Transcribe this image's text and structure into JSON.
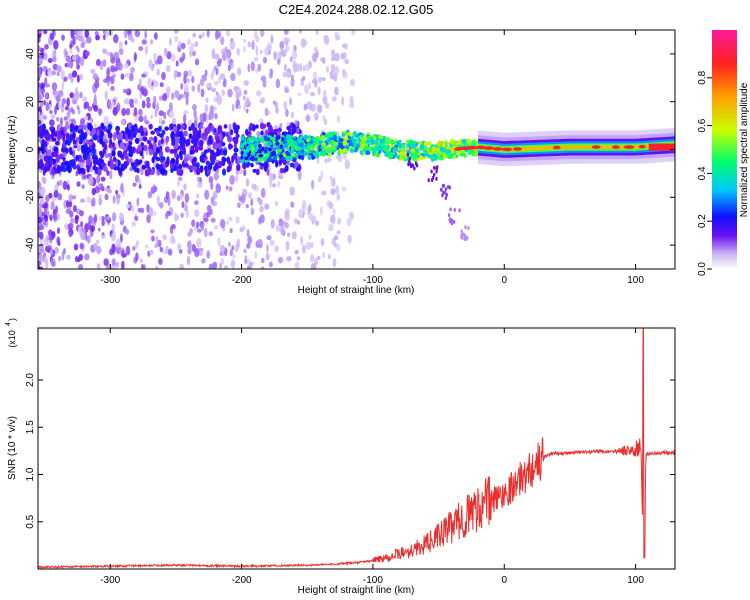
{
  "title": "C2E4.2024.288.02.12.G05",
  "chart_data": [
    {
      "type": "heatmap",
      "xlabel": "Height of straight line (km)",
      "ylabel": "Frequency (Hz)",
      "xlim": [
        -355,
        130
      ],
      "ylim": [
        -50,
        50
      ],
      "xticks": [
        -300,
        -200,
        -100,
        0,
        100
      ],
      "yticks": [
        -40,
        -20,
        0,
        20,
        40
      ],
      "colorbar": {
        "label": "Normalized spectral amplitude",
        "range": [
          0,
          1
        ],
        "ticks": [
          0.0,
          0.2,
          0.4,
          0.6,
          0.8
        ],
        "tick_labels": [
          "0.0",
          "0.2",
          "0.4",
          "0.6",
          "0.8"
        ],
        "colormap": [
          "#ffffff",
          "#cfb8f5",
          "#6a12f2",
          "#1010ff",
          "#00c8ff",
          "#00ff6a",
          "#c8ff00",
          "#ffa000",
          "#ff2020",
          "#ff1a9a"
        ]
      },
      "signal_track": {
        "description_points": [
          [
            -355,
            0
          ],
          [
            -200,
            0
          ],
          [
            -150,
            1
          ],
          [
            -120,
            3
          ],
          [
            -100,
            2
          ],
          [
            -80,
            0
          ],
          [
            -60,
            -1
          ],
          [
            -40,
            0
          ],
          [
            -20,
            1
          ],
          [
            0,
            0
          ],
          [
            50,
            1
          ],
          [
            100,
            1
          ],
          [
            130,
            2
          ]
        ]
      },
      "descending_branch": [
        [
          -70,
          -5
        ],
        [
          -55,
          -10
        ],
        [
          -45,
          -18
        ],
        [
          -38,
          -28
        ],
        [
          -30,
          -35
        ]
      ],
      "grid": false
    },
    {
      "type": "line",
      "xlabel": "Height of straight line (km)",
      "ylabel": "SNR (10 * v/v)",
      "yscale_label": "(x10",
      "yscale_exp": "4",
      "xlim": [
        -355,
        130
      ],
      "ylim": [
        0,
        2.55
      ],
      "xticks": [
        -300,
        -200,
        -100,
        0,
        100
      ],
      "yticks": [
        0.5,
        1.0,
        1.5,
        2.0
      ],
      "ytick_labels": [
        "0.5",
        "1.0",
        "1.5",
        "2.0"
      ],
      "color": "#e8302f",
      "series": [
        {
          "x": [
            -355,
            -300,
            -250,
            -200,
            -150,
            -130,
            -110,
            -100,
            -90,
            -80,
            -70,
            -60,
            -50,
            -40,
            -30,
            -20,
            -15,
            -10,
            0,
            10,
            20,
            30,
            35,
            50,
            70,
            90,
            100,
            104,
            106,
            108,
            110,
            120,
            130
          ],
          "values": [
            0.02,
            0.03,
            0.04,
            0.03,
            0.04,
            0.05,
            0.07,
            0.09,
            0.12,
            0.16,
            0.2,
            0.26,
            0.35,
            0.45,
            0.55,
            0.65,
            0.7,
            0.72,
            0.8,
            0.92,
            1.05,
            1.18,
            1.22,
            1.23,
            1.24,
            1.25,
            1.26,
            1.3,
            0.2,
            1.2,
            1.22,
            1.23,
            1.23
          ]
        }
      ],
      "grid": false
    }
  ]
}
